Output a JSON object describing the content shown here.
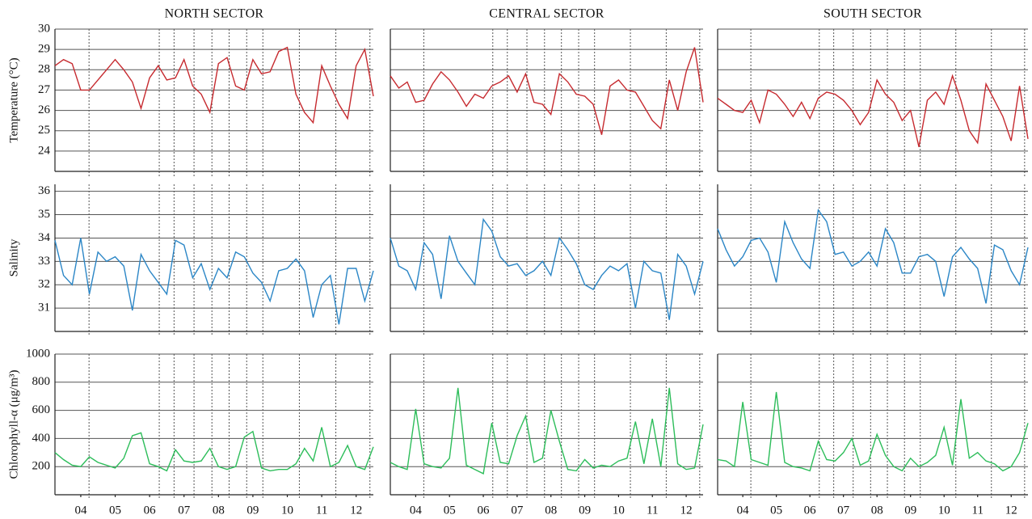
{
  "chart_data": [
    {
      "type": "line",
      "title": "NORTH SECTOR",
      "y_label": "Temperature (°C)",
      "ytick_labels": true,
      "x": [
        3.25,
        3.5,
        3.75,
        4,
        4.25,
        4.5,
        4.75,
        5,
        5.25,
        5.5,
        5.75,
        6,
        6.25,
        6.5,
        6.75,
        7,
        7.25,
        7.5,
        7.75,
        8,
        8.25,
        8.5,
        8.75,
        9,
        9.25,
        9.5,
        9.75,
        10,
        10.25,
        10.5,
        10.75,
        11,
        11.25,
        11.5,
        11.75,
        12,
        12.25,
        12.5
      ],
      "series": [
        {
          "color": "#c62a2f",
          "values": [
            28.2,
            28.5,
            28.3,
            27.0,
            27.0,
            27.5,
            28.0,
            28.5,
            28.0,
            27.4,
            26.1,
            27.6,
            28.2,
            27.5,
            27.6,
            28.5,
            27.2,
            26.8,
            25.9,
            28.3,
            28.6,
            27.2,
            27.0,
            28.5,
            27.8,
            27.9,
            28.9,
            29.1,
            26.8,
            25.9,
            25.4,
            28.2,
            27.2,
            26.3,
            25.6,
            28.2,
            29.0,
            26.7
          ]
        }
      ],
      "xlim": [
        3.25,
        12.5
      ],
      "vlines": [
        4.24,
        6.28,
        6.71,
        7.29,
        7.81,
        8.31,
        8.82,
        9.29,
        10.35,
        11.41,
        12.4
      ],
      "ylim": [
        23,
        30
      ],
      "yticks": [
        24,
        25,
        26,
        27,
        28,
        29,
        30
      ]
    },
    {
      "type": "line",
      "title": "CENTRAL SECTOR",
      "ytick_labels": false,
      "x": [
        3.25,
        3.5,
        3.75,
        4,
        4.25,
        4.5,
        4.75,
        5,
        5.25,
        5.5,
        5.75,
        6,
        6.25,
        6.5,
        6.75,
        7,
        7.25,
        7.5,
        7.75,
        8,
        8.25,
        8.5,
        8.75,
        9,
        9.25,
        9.5,
        9.75,
        10,
        10.25,
        10.5,
        10.75,
        11,
        11.25,
        11.5,
        11.75,
        12,
        12.25,
        12.5
      ],
      "series": [
        {
          "color": "#c62a2f",
          "values": [
            27.7,
            27.1,
            27.4,
            26.4,
            26.5,
            27.3,
            27.9,
            27.5,
            26.9,
            26.2,
            26.8,
            26.6,
            27.2,
            27.4,
            27.7,
            26.9,
            27.8,
            26.4,
            26.3,
            25.8,
            27.8,
            27.4,
            26.8,
            26.7,
            26.3,
            24.8,
            27.2,
            27.5,
            27.0,
            26.9,
            26.2,
            25.5,
            25.1,
            27.5,
            26.0,
            27.9,
            29.1,
            26.4
          ]
        }
      ],
      "xlim": [
        3.25,
        12.5
      ],
      "vlines": [
        4.24,
        6.28,
        6.71,
        7.29,
        7.81,
        8.31,
        8.82,
        9.29,
        10.35,
        11.41,
        12.4
      ],
      "ylim": [
        23,
        30
      ],
      "yticks": [
        24,
        25,
        26,
        27,
        28,
        29,
        30
      ]
    },
    {
      "type": "line",
      "title": "SOUTH SECTOR",
      "ytick_labels": false,
      "x": [
        3.25,
        3.5,
        3.75,
        4,
        4.25,
        4.5,
        4.75,
        5,
        5.25,
        5.5,
        5.75,
        6,
        6.25,
        6.5,
        6.75,
        7,
        7.25,
        7.5,
        7.75,
        8,
        8.25,
        8.5,
        8.75,
        9,
        9.25,
        9.5,
        9.75,
        10,
        10.25,
        10.5,
        10.75,
        11,
        11.25,
        11.5,
        11.75,
        12,
        12.25,
        12.5
      ],
      "series": [
        {
          "color": "#c62a2f",
          "values": [
            26.6,
            26.3,
            26.0,
            25.9,
            26.5,
            25.4,
            27.0,
            26.8,
            26.3,
            25.7,
            26.4,
            25.6,
            26.6,
            26.9,
            26.8,
            26.5,
            26.0,
            25.3,
            25.9,
            27.5,
            26.8,
            26.4,
            25.5,
            26.0,
            24.2,
            26.5,
            26.9,
            26.3,
            27.7,
            26.5,
            25.0,
            24.4,
            27.3,
            26.5,
            25.7,
            24.5,
            27.2,
            24.6
          ]
        }
      ],
      "xlim": [
        3.25,
        12.5
      ],
      "vlines": [
        4.24,
        6.28,
        6.71,
        7.29,
        7.81,
        8.31,
        8.82,
        9.29,
        10.35,
        11.41,
        12.4
      ],
      "ylim": [
        23,
        30
      ],
      "yticks": [
        24,
        25,
        26,
        27,
        28,
        29,
        30
      ]
    },
    {
      "type": "line",
      "y_label": "Salinity",
      "ytick_labels": true,
      "x": [
        3.25,
        3.5,
        3.75,
        4,
        4.25,
        4.5,
        4.75,
        5,
        5.25,
        5.5,
        5.75,
        6,
        6.25,
        6.5,
        6.75,
        7,
        7.25,
        7.5,
        7.75,
        8,
        8.25,
        8.5,
        8.75,
        9,
        9.25,
        9.5,
        9.75,
        10,
        10.25,
        10.5,
        10.75,
        11,
        11.25,
        11.5,
        11.75,
        12,
        12.25,
        12.5
      ],
      "series": [
        {
          "color": "#2b86c6",
          "values": [
            33.9,
            32.4,
            32.0,
            34.0,
            31.6,
            33.4,
            33.0,
            33.2,
            32.8,
            30.9,
            33.3,
            32.6,
            32.1,
            31.6,
            33.9,
            33.7,
            32.3,
            32.9,
            31.8,
            32.7,
            32.3,
            33.4,
            33.2,
            32.5,
            32.1,
            31.3,
            32.6,
            32.7,
            33.1,
            32.6,
            30.6,
            32.0,
            32.4,
            30.3,
            32.7,
            32.7,
            31.3,
            32.6
          ]
        }
      ],
      "xlim": [
        3.25,
        12.5
      ],
      "vlines": [
        4.24,
        6.28,
        6.71,
        7.29,
        7.81,
        8.31,
        8.82,
        9.29,
        10.35,
        11.41,
        12.4
      ],
      "ylim": [
        30,
        36.3
      ],
      "yticks": [
        31,
        32,
        33,
        34,
        35,
        36
      ]
    },
    {
      "type": "line",
      "ytick_labels": false,
      "x": [
        3.25,
        3.5,
        3.75,
        4,
        4.25,
        4.5,
        4.75,
        5,
        5.25,
        5.5,
        5.75,
        6,
        6.25,
        6.5,
        6.75,
        7,
        7.25,
        7.5,
        7.75,
        8,
        8.25,
        8.5,
        8.75,
        9,
        9.25,
        9.5,
        9.75,
        10,
        10.25,
        10.5,
        10.75,
        11,
        11.25,
        11.5,
        11.75,
        12,
        12.25,
        12.5
      ],
      "series": [
        {
          "color": "#2b86c6",
          "values": [
            34.0,
            32.8,
            32.6,
            31.8,
            33.8,
            33.3,
            31.4,
            34.1,
            33.0,
            32.5,
            32.0,
            34.8,
            34.3,
            33.2,
            32.8,
            32.9,
            32.4,
            32.6,
            33.0,
            32.4,
            34.0,
            33.5,
            32.9,
            32.0,
            31.8,
            32.4,
            32.8,
            32.6,
            32.9,
            31.0,
            33.0,
            32.6,
            32.5,
            30.5,
            33.3,
            32.8,
            31.6,
            33.0
          ]
        }
      ],
      "xlim": [
        3.25,
        12.5
      ],
      "vlines": [
        4.24,
        6.28,
        6.71,
        7.29,
        7.81,
        8.31,
        8.82,
        9.29,
        10.35,
        11.41,
        12.4
      ],
      "ylim": [
        30,
        36.3
      ],
      "yticks": [
        31,
        32,
        33,
        34,
        35,
        36
      ]
    },
    {
      "type": "line",
      "ytick_labels": false,
      "x": [
        3.25,
        3.5,
        3.75,
        4,
        4.25,
        4.5,
        4.75,
        5,
        5.25,
        5.5,
        5.75,
        6,
        6.25,
        6.5,
        6.75,
        7,
        7.25,
        7.5,
        7.75,
        8,
        8.25,
        8.5,
        8.75,
        9,
        9.25,
        9.5,
        9.75,
        10,
        10.25,
        10.5,
        10.75,
        11,
        11.25,
        11.5,
        11.75,
        12,
        12.25,
        12.5
      ],
      "series": [
        {
          "color": "#2b86c6",
          "values": [
            34.4,
            33.5,
            32.8,
            33.2,
            33.9,
            34.0,
            33.4,
            32.1,
            34.7,
            33.8,
            33.1,
            32.7,
            35.2,
            34.7,
            33.3,
            33.4,
            32.8,
            33.0,
            33.4,
            32.8,
            34.4,
            33.8,
            32.5,
            32.5,
            33.2,
            33.3,
            33.0,
            31.5,
            33.2,
            33.6,
            33.1,
            32.7,
            31.2,
            33.7,
            33.5,
            32.6,
            32.0,
            33.6
          ]
        }
      ],
      "xlim": [
        3.25,
        12.5
      ],
      "vlines": [
        4.24,
        6.28,
        6.71,
        7.29,
        7.81,
        8.31,
        8.82,
        9.29,
        10.35,
        11.41,
        12.4
      ],
      "ylim": [
        30,
        36.3
      ],
      "yticks": [
        31,
        32,
        33,
        34,
        35,
        36
      ]
    },
    {
      "type": "line",
      "y_label": "Chlorophyll-α (μg/m³)",
      "ytick_labels": true,
      "x": [
        3.25,
        3.5,
        3.75,
        4,
        4.25,
        4.5,
        4.75,
        5,
        5.25,
        5.5,
        5.75,
        6,
        6.25,
        6.5,
        6.75,
        7,
        7.25,
        7.5,
        7.75,
        8,
        8.25,
        8.5,
        8.75,
        9,
        9.25,
        9.5,
        9.75,
        10,
        10.25,
        10.5,
        10.75,
        11,
        11.25,
        11.5,
        11.75,
        12,
        12.25,
        12.5
      ],
      "series": [
        {
          "color": "#2dbd5a",
          "values": [
            300,
            250,
            210,
            200,
            270,
            230,
            210,
            190,
            260,
            420,
            440,
            220,
            200,
            170,
            320,
            240,
            230,
            240,
            330,
            200,
            180,
            200,
            410,
            450,
            190,
            170,
            180,
            180,
            220,
            330,
            240,
            480,
            200,
            230,
            350,
            200,
            180,
            340
          ]
        }
      ],
      "xlim": [
        3.25,
        12.5
      ],
      "vlines": [
        4.24,
        6.28,
        6.71,
        7.29,
        7.81,
        8.31,
        8.82,
        9.29,
        10.35,
        11.41,
        12.4
      ],
      "xticks": [
        {
          "value": 4,
          "label": "04"
        },
        {
          "value": 5,
          "label": "05"
        },
        {
          "value": 6,
          "label": "06"
        },
        {
          "value": 7,
          "label": "07"
        },
        {
          "value": 8,
          "label": "08"
        },
        {
          "value": 9,
          "label": "09"
        },
        10,
        11,
        12
      ],
      "ylim": [
        0,
        1000
      ],
      "yticks": [
        200,
        400,
        600,
        800,
        1000
      ]
    },
    {
      "type": "line",
      "ytick_labels": false,
      "x": [
        3.25,
        3.5,
        3.75,
        4,
        4.25,
        4.5,
        4.75,
        5,
        5.25,
        5.5,
        5.75,
        6,
        6.25,
        6.5,
        6.75,
        7,
        7.25,
        7.5,
        7.75,
        8,
        8.25,
        8.5,
        8.75,
        9,
        9.25,
        9.5,
        9.75,
        10,
        10.25,
        10.5,
        10.75,
        11,
        11.25,
        11.5,
        11.75,
        12,
        12.25,
        12.5
      ],
      "series": [
        {
          "color": "#2dbd5a",
          "values": [
            230,
            200,
            180,
            610,
            220,
            200,
            190,
            260,
            760,
            210,
            180,
            150,
            510,
            230,
            220,
            420,
            560,
            230,
            260,
            600,
            380,
            180,
            170,
            250,
            190,
            210,
            200,
            240,
            260,
            520,
            220,
            540,
            200,
            760,
            220,
            180,
            190,
            500
          ]
        }
      ],
      "xlim": [
        3.25,
        12.5
      ],
      "vlines": [
        4.24,
        6.28,
        6.71,
        7.29,
        7.81,
        8.31,
        8.82,
        9.29,
        10.35,
        11.41,
        12.4
      ],
      "xticks": [
        {
          "value": 4,
          "label": "04"
        },
        {
          "value": 5,
          "label": "05"
        },
        {
          "value": 6,
          "label": "06"
        },
        {
          "value": 7,
          "label": "07"
        },
        {
          "value": 8,
          "label": "08"
        },
        {
          "value": 9,
          "label": "09"
        },
        10,
        11,
        12
      ],
      "ylim": [
        0,
        1000
      ],
      "yticks": [
        200,
        400,
        600,
        800,
        1000
      ]
    },
    {
      "type": "line",
      "ytick_labels": false,
      "x": [
        3.25,
        3.5,
        3.75,
        4,
        4.25,
        4.5,
        4.75,
        5,
        5.25,
        5.5,
        5.75,
        6,
        6.25,
        6.5,
        6.75,
        7,
        7.25,
        7.5,
        7.75,
        8,
        8.25,
        8.5,
        8.75,
        9,
        9.25,
        9.5,
        9.75,
        10,
        10.25,
        10.5,
        10.75,
        11,
        11.25,
        11.5,
        11.75,
        12,
        12.25,
        12.5
      ],
      "series": [
        {
          "color": "#2dbd5a",
          "values": [
            250,
            240,
            200,
            660,
            250,
            230,
            210,
            730,
            230,
            200,
            190,
            170,
            380,
            250,
            240,
            300,
            400,
            210,
            240,
            430,
            280,
            200,
            170,
            260,
            200,
            230,
            280,
            480,
            210,
            680,
            260,
            300,
            240,
            220,
            170,
            200,
            300,
            510
          ]
        }
      ],
      "xlim": [
        3.25,
        12.5
      ],
      "vlines": [
        4.24,
        6.28,
        6.71,
        7.29,
        7.81,
        8.31,
        8.82,
        9.29,
        10.35,
        11.41,
        12.4
      ],
      "xticks": [
        {
          "value": 4,
          "label": "04"
        },
        {
          "value": 5,
          "label": "05"
        },
        {
          "value": 6,
          "label": "06"
        },
        {
          "value": 7,
          "label": "07"
        },
        {
          "value": 8,
          "label": "08"
        },
        {
          "value": 9,
          "label": "09"
        },
        10,
        11,
        12
      ],
      "ylim": [
        0,
        1000
      ],
      "yticks": [
        200,
        400,
        600,
        800,
        1000
      ]
    }
  ]
}
